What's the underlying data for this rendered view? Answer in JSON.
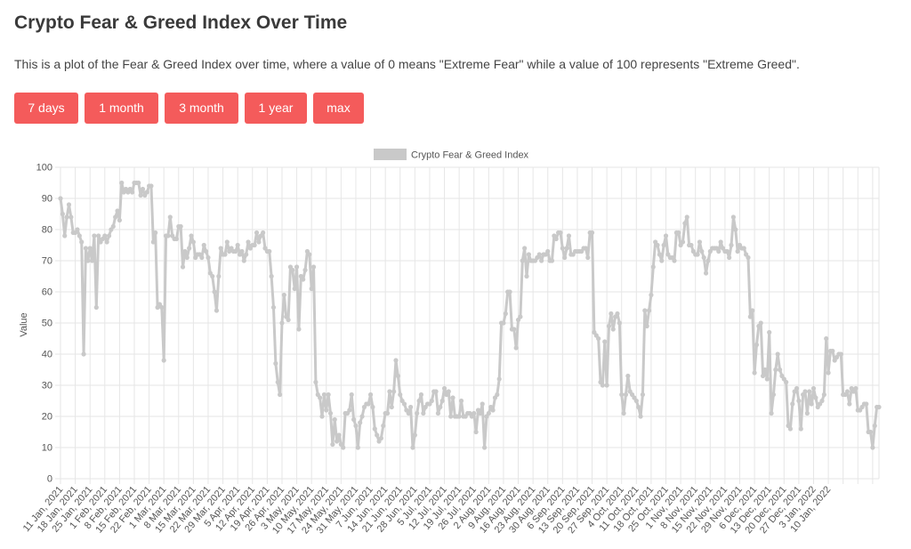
{
  "page": {
    "title": "Crypto Fear & Greed Index Over Time",
    "description": "This is a plot of the Fear & Greed Index over time, where a value of 0 means \"Extreme Fear\" while a value of 100 represents \"Extreme Greed\"."
  },
  "range_buttons": [
    {
      "label": "7 days"
    },
    {
      "label": "1 month"
    },
    {
      "label": "3 month"
    },
    {
      "label": "1 year"
    },
    {
      "label": "max"
    }
  ],
  "colors": {
    "button": "#f45b5b",
    "series": "#c9c9c9",
    "grid": "#e6e6e6",
    "axis_text": "#555555"
  },
  "chart_data": {
    "type": "line",
    "title": "",
    "xlabel": "",
    "ylabel": "Value",
    "ylim": [
      0,
      100
    ],
    "y_ticks": [
      0,
      10,
      20,
      30,
      40,
      50,
      60,
      70,
      80,
      90,
      100
    ],
    "grid": true,
    "legend_position": "top",
    "x_tick_labels": [
      "11 Jan, 2021",
      "18 Jan, 2021",
      "25 Jan, 2021",
      "1 Feb, 2021",
      "8 Feb, 2021",
      "15 Feb, 2021",
      "22 Feb, 2021",
      "1 Mar, 2021",
      "8 Mar, 2021",
      "15 Mar, 2021",
      "22 Mar, 2021",
      "29 Mar, 2021",
      "5 Apr, 2021",
      "12 Apr, 2021",
      "19 Apr, 2021",
      "26 Apr, 2021",
      "3 May, 2021",
      "10 May, 2021",
      "17 May, 2021",
      "24 May, 2021",
      "31 May, 2021",
      "7 Jun, 2021",
      "14 Jun, 2021",
      "21 Jun, 2021",
      "28 Jun, 2021",
      "5 Jul, 2021",
      "12 Jul, 2021",
      "19 Jul, 2021",
      "26 Jul, 2021",
      "2 Aug, 2021",
      "9 Aug, 2021",
      "16 Aug, 2021",
      "23 Aug, 2021",
      "30 Aug, 2021",
      "6 Sep, 2021",
      "13 Sep, 2021",
      "20 Sep, 2021",
      "27 Sep, 2021",
      "4 Oct, 2021",
      "11 Oct, 2021",
      "18 Oct, 2021",
      "25 Oct, 2021",
      "1 Nov, 2021",
      "8 Nov, 2021",
      "15 Nov, 2021",
      "22 Nov, 2021",
      "29 Nov, 2021",
      "6 Dec, 2021",
      "13 Dec, 2021",
      "20 Dec, 2021",
      "27 Dec, 2021",
      "3 Jan, 2022",
      "10 Jan, 2022"
    ],
    "series": [
      {
        "name": "Crypto Fear & Greed Index",
        "start_date": "2021-01-11",
        "interval": "1 day",
        "values": [
          90,
          85,
          78,
          84,
          88,
          84,
          79,
          79,
          80,
          78,
          76,
          40,
          74,
          70,
          74,
          70,
          78,
          55,
          78,
          76,
          77,
          78,
          76,
          78,
          80,
          81,
          84,
          86,
          83,
          95,
          92,
          93,
          92,
          93,
          92,
          95,
          95,
          95,
          91,
          93,
          91,
          92,
          94,
          94,
          76,
          79,
          55,
          56,
          55,
          38,
          78,
          78,
          84,
          78,
          77,
          77,
          81,
          81,
          68,
          73,
          71,
          74,
          78,
          76,
          71,
          72,
          72,
          71,
          75,
          73,
          71,
          66,
          65,
          60,
          54,
          65,
          74,
          72,
          72,
          76,
          73,
          74,
          73,
          73,
          75,
          72,
          73,
          70,
          72,
          76,
          74,
          75,
          75,
          79,
          76,
          78,
          79,
          74,
          73,
          73,
          65,
          55,
          37,
          31,
          27,
          50,
          59,
          52,
          51,
          68,
          67,
          61,
          68,
          48,
          65,
          64,
          67,
          73,
          72,
          61,
          68,
          31,
          27,
          26,
          20,
          27,
          22,
          27,
          21,
          11,
          19,
          12,
          14,
          11,
          10,
          21,
          21,
          22,
          27,
          19,
          17,
          10,
          18,
          20,
          23,
          24,
          24,
          27,
          23,
          16,
          14,
          12,
          13,
          17,
          21,
          21,
          28,
          23,
          28,
          38,
          33,
          27,
          25,
          24,
          22,
          21,
          23,
          10,
          14,
          21,
          25,
          27,
          21,
          23,
          24,
          24,
          25,
          28,
          28,
          21,
          23,
          25,
          29,
          27,
          28,
          20,
          26,
          20,
          20,
          20,
          25,
          20,
          20,
          21,
          21,
          20,
          21,
          15,
          22,
          21,
          24,
          10,
          20,
          21,
          23,
          22,
          26,
          27,
          32,
          50,
          50,
          53,
          60,
          60,
          48,
          48,
          42,
          51,
          52,
          70,
          74,
          65,
          72,
          70,
          70,
          70,
          71,
          72,
          70,
          72,
          72,
          73,
          70,
          70,
          78,
          77,
          79,
          79,
          74,
          71,
          74,
          78,
          72,
          72,
          73,
          73,
          73,
          73,
          74,
          74,
          71,
          79,
          79,
          47,
          46,
          45,
          31,
          30,
          44,
          30,
          49,
          53,
          48,
          52,
          53,
          50,
          27,
          21,
          27,
          33,
          28,
          27,
          26,
          25,
          23,
          20,
          27,
          54,
          49,
          54,
          59,
          68,
          76,
          75,
          72,
          70,
          75,
          78,
          72,
          71,
          71,
          70,
          79,
          79,
          75,
          76,
          82,
          84,
          75,
          75,
          73,
          72,
          72,
          76,
          73,
          71,
          66,
          70,
          73,
          74,
          74,
          74,
          73,
          76,
          74,
          73,
          73,
          71,
          75,
          84,
          80,
          73,
          75,
          74,
          74,
          72,
          71,
          52,
          54,
          34,
          43,
          49,
          50,
          33,
          35,
          32,
          47,
          21,
          27,
          35,
          40,
          35,
          33,
          32,
          31,
          17,
          16,
          24,
          28,
          29,
          25,
          16,
          27,
          28,
          21,
          28,
          24,
          29,
          26,
          23,
          24,
          25,
          27,
          45,
          34,
          41,
          41,
          38,
          39,
          40,
          40,
          27,
          27,
          28,
          24,
          29,
          28,
          29,
          22,
          22,
          23,
          24,
          24,
          15,
          15,
          10,
          17,
          23,
          23
        ]
      }
    ]
  }
}
